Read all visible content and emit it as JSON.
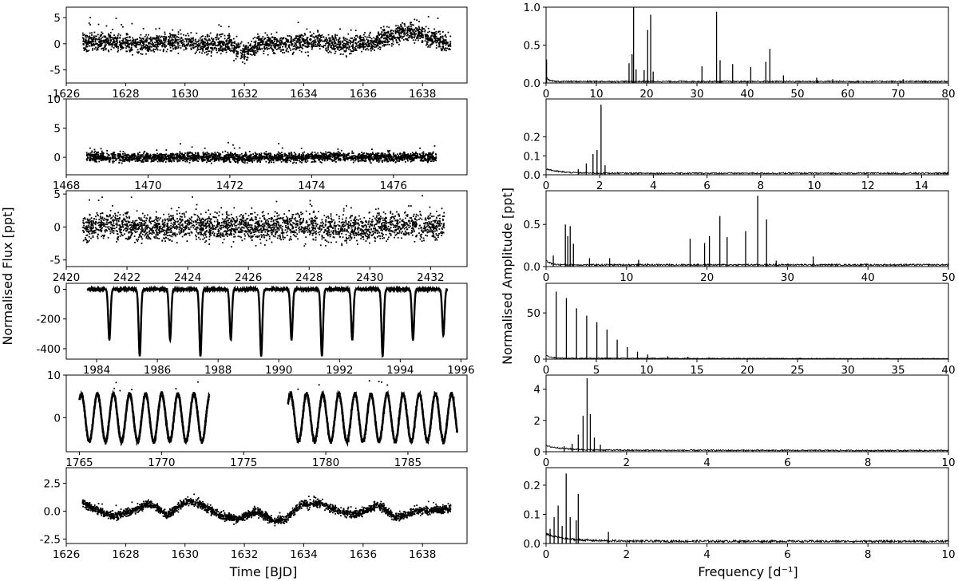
{
  "figure": {
    "left_ylabel": "Normalised Flux [ppt]",
    "left_xlabel": "Time [BJD]",
    "right_ylabel": "Normalised Amplitude [ppt]",
    "right_xlabel": "Frequency [d⁻¹]"
  },
  "chart_data": [
    {
      "type": "scatter",
      "column": "left",
      "row": 1,
      "xlim": [
        1626,
        1639.5
      ],
      "ylim": [
        -7.5,
        7
      ],
      "xticks": [
        1626,
        1628,
        1630,
        1632,
        1634,
        1636,
        1638
      ],
      "yticks": [
        -5,
        0,
        5
      ],
      "x": [
        1626.55,
        1627.5,
        1628.5,
        1629.5,
        1630.5,
        1631.5,
        1632.0,
        1632.5,
        1633.5,
        1634.5,
        1635.5,
        1636.5,
        1637.5,
        1638.5,
        1638.95
      ],
      "y": [
        0.6,
        0.3,
        -0.1,
        0.4,
        -0.2,
        0.1,
        -2.0,
        0.2,
        0.0,
        0.5,
        -0.3,
        0.6,
        2.5,
        0.8,
        -0.4
      ],
      "scatter_amplitude": 2.2
    },
    {
      "type": "scatter",
      "column": "left",
      "row": 2,
      "xlim": [
        1468,
        1477.8
      ],
      "ylim": [
        -3,
        10
      ],
      "xticks": [
        1468,
        1470,
        1472,
        1474,
        1476
      ],
      "yticks": [
        0,
        5,
        10
      ],
      "x": [
        1468.5,
        1469.5,
        1470.5,
        1471.5,
        1472.5,
        1473.5,
        1474.5,
        1475.5,
        1476.5,
        1477.05
      ],
      "y": [
        0.1,
        -0.1,
        0.0,
        0.1,
        -0.1,
        0.0,
        0.1,
        0.0,
        0.1,
        0.0
      ],
      "scatter_amplitude": 1.0
    },
    {
      "type": "scatter",
      "column": "left",
      "row": 3,
      "xlim": [
        2420,
        2433.2
      ],
      "ylim": [
        -6,
        5.5
      ],
      "xticks": [
        2420,
        2422,
        2424,
        2426,
        2428,
        2430,
        2432
      ],
      "yticks": [
        -5,
        0,
        5
      ],
      "x": [
        2420.55,
        2421.5,
        2422.5,
        2423.5,
        2424.5,
        2425.5,
        2426.5,
        2427.5,
        2428.5,
        2429.5,
        2430.5,
        2431.5,
        2432.45
      ],
      "y": [
        0.0,
        0.3,
        -0.2,
        0.1,
        0.0,
        0.2,
        -0.1,
        0.3,
        0.0,
        -0.2,
        0.1,
        0.2,
        0.0
      ],
      "scatter_amplitude": 2.6
    },
    {
      "type": "line",
      "column": "left",
      "row": 4,
      "xlim": [
        1983,
        1996.2
      ],
      "ylim": [
        -470,
        40
      ],
      "xticks": [
        1984,
        1986,
        1988,
        1990,
        1992,
        1994,
        1996
      ],
      "yticks": [
        -400,
        -200,
        0
      ],
      "baseline": 0,
      "eclipses": [
        {
          "x": 1984.42,
          "depth": -340
        },
        {
          "x": 1985.42,
          "depth": -450
        },
        {
          "x": 1986.42,
          "depth": -340
        },
        {
          "x": 1987.42,
          "depth": -450
        },
        {
          "x": 1988.42,
          "depth": -340
        },
        {
          "x": 1989.42,
          "depth": -450
        },
        {
          "x": 1990.42,
          "depth": -340
        },
        {
          "x": 1991.42,
          "depth": -450
        },
        {
          "x": 1992.42,
          "depth": -340
        },
        {
          "x": 1993.42,
          "depth": -450
        },
        {
          "x": 1994.42,
          "depth": -340
        },
        {
          "x": 1995.42,
          "depth": -310
        }
      ],
      "data_range": [
        1983.7,
        1995.55
      ]
    },
    {
      "type": "line",
      "column": "left",
      "row": 5,
      "xlim": [
        1764.2,
        1788.6
      ],
      "ylim": [
        -8,
        10
      ],
      "xticks": [
        1765,
        1770,
        1775,
        1780,
        1785
      ],
      "yticks": [
        0,
        10
      ],
      "segments": [
        [
          1765.0,
          1772.9
        ],
        [
          1777.7,
          1788.0
        ]
      ],
      "period_days": 0.98,
      "amplitude": 5.6,
      "phase": 0.7
    },
    {
      "type": "scatter",
      "column": "left",
      "row": 6,
      "xlim": [
        1626,
        1639.5
      ],
      "ylim": [
        -2.9,
        3.9
      ],
      "xticks": [
        1626,
        1628,
        1630,
        1632,
        1634,
        1636,
        1638
      ],
      "yticks": [
        -2.5,
        0.0,
        2.5
      ],
      "x": [
        1626.55,
        1627.0,
        1627.6,
        1628.2,
        1628.8,
        1629.4,
        1630.1,
        1630.6,
        1631.2,
        1631.8,
        1632.4,
        1633.0,
        1633.4,
        1633.9,
        1634.6,
        1635.2,
        1635.8,
        1636.5,
        1637.1,
        1637.8,
        1638.95
      ],
      "y": [
        0.8,
        0.1,
        -0.5,
        0.0,
        0.7,
        -0.3,
        0.9,
        0.5,
        -0.4,
        -0.7,
        0.0,
        -0.9,
        -0.7,
        0.6,
        0.7,
        0.0,
        -0.3,
        0.6,
        -0.6,
        0.0,
        0.2
      ],
      "scatter_amplitude": 0.45
    },
    {
      "type": "line",
      "column": "right",
      "row": 1,
      "xlim": [
        0,
        80
      ],
      "ylim": [
        0,
        1.0
      ],
      "xticks": [
        0,
        10,
        20,
        30,
        40,
        50,
        60,
        70,
        80
      ],
      "yticks": [
        0.0,
        0.5,
        1.0
      ],
      "noise_level": 0.03,
      "noise_decay": 0.0,
      "peaks": [
        [
          0.1,
          0.31
        ],
        [
          16.5,
          0.26
        ],
        [
          17.1,
          0.38
        ],
        [
          17.4,
          1.0
        ],
        [
          17.9,
          0.18
        ],
        [
          19.5,
          0.17
        ],
        [
          20.2,
          0.7
        ],
        [
          20.8,
          0.9
        ],
        [
          21.3,
          0.15
        ],
        [
          31.0,
          0.22
        ],
        [
          33.9,
          0.94
        ],
        [
          34.6,
          0.3
        ],
        [
          37.1,
          0.25
        ],
        [
          40.7,
          0.21
        ],
        [
          43.7,
          0.28
        ],
        [
          44.5,
          0.45
        ],
        [
          47.2,
          0.1
        ],
        [
          53.8,
          0.07
        ],
        [
          57.0,
          0.05
        ],
        [
          71.0,
          0.05
        ]
      ]
    },
    {
      "type": "line",
      "column": "right",
      "row": 2,
      "xlim": [
        0,
        15
      ],
      "ylim": [
        0,
        0.4
      ],
      "xticks": [
        0,
        2,
        4,
        6,
        8,
        10,
        12,
        14
      ],
      "yticks": [
        0.0,
        0.1,
        0.2
      ],
      "noise_level": 0.012,
      "noise_decay": 0.0,
      "peaks": [
        [
          1.2,
          0.03
        ],
        [
          1.5,
          0.06
        ],
        [
          1.75,
          0.11
        ],
        [
          1.9,
          0.13
        ],
        [
          2.05,
          0.37
        ],
        [
          2.2,
          0.05
        ]
      ]
    },
    {
      "type": "line",
      "column": "right",
      "row": 3,
      "xlim": [
        0,
        50
      ],
      "ylim": [
        0,
        0.9
      ],
      "xticks": [
        0,
        10,
        20,
        30,
        40,
        50
      ],
      "yticks": [
        0.0,
        0.5
      ],
      "noise_level": 0.03,
      "noise_decay": 0.0,
      "peaks": [
        [
          0.9,
          0.13
        ],
        [
          2.4,
          0.5
        ],
        [
          2.7,
          0.36
        ],
        [
          3.0,
          0.48
        ],
        [
          3.4,
          0.27
        ],
        [
          5.4,
          0.1
        ],
        [
          7.9,
          0.1
        ],
        [
          11.5,
          0.08
        ],
        [
          17.9,
          0.33
        ],
        [
          19.7,
          0.28
        ],
        [
          20.3,
          0.36
        ],
        [
          21.6,
          0.6
        ],
        [
          22.5,
          0.35
        ],
        [
          24.8,
          0.42
        ],
        [
          26.3,
          0.84
        ],
        [
          27.4,
          0.56
        ],
        [
          28.6,
          0.07
        ],
        [
          33.2,
          0.12
        ]
      ]
    },
    {
      "type": "line",
      "column": "right",
      "row": 4,
      "xlim": [
        0,
        40
      ],
      "ylim": [
        0,
        82
      ],
      "xticks": [
        0,
        5,
        10,
        15,
        20,
        25,
        30,
        35,
        40
      ],
      "yticks": [
        0,
        50
      ],
      "noise_level": 1.5,
      "noise_decay": 0.15,
      "peaks": [
        [
          1.01,
          73
        ],
        [
          2.02,
          66
        ],
        [
          3.03,
          55
        ],
        [
          4.04,
          47
        ],
        [
          5.05,
          40
        ],
        [
          6.06,
          32
        ],
        [
          7.07,
          21
        ],
        [
          8.08,
          13
        ],
        [
          9.09,
          8
        ],
        [
          10.1,
          5
        ],
        [
          12.1,
          3
        ],
        [
          14.1,
          2.5
        ],
        [
          16.2,
          2
        ],
        [
          18.2,
          1.5
        ]
      ]
    },
    {
      "type": "line",
      "column": "right",
      "row": 5,
      "xlim": [
        0,
        10
      ],
      "ylim": [
        0,
        4.9
      ],
      "xticks": [
        0,
        2,
        4,
        6,
        8,
        10
      ],
      "yticks": [
        0,
        2,
        4
      ],
      "noise_level": 0.14,
      "noise_decay": 0.2,
      "peaks": [
        [
          0.45,
          0.35
        ],
        [
          0.65,
          0.5
        ],
        [
          0.8,
          1.1
        ],
        [
          0.92,
          2.3
        ],
        [
          1.02,
          4.7
        ],
        [
          1.1,
          2.4
        ],
        [
          1.2,
          0.9
        ],
        [
          1.35,
          0.45
        ]
      ]
    },
    {
      "type": "line",
      "column": "right",
      "row": 6,
      "xlim": [
        0,
        10
      ],
      "ylim": [
        0,
        0.26
      ],
      "xticks": [
        0,
        2,
        4,
        6,
        8,
        10
      ],
      "yticks": [
        0.0,
        0.1,
        0.2
      ],
      "noise_level": 0.012,
      "noise_decay": 0.1,
      "peaks": [
        [
          0.1,
          0.05
        ],
        [
          0.2,
          0.09
        ],
        [
          0.3,
          0.13
        ],
        [
          0.4,
          0.06
        ],
        [
          0.5,
          0.24
        ],
        [
          0.6,
          0.09
        ],
        [
          0.75,
          0.08
        ],
        [
          0.8,
          0.17
        ],
        [
          1.55,
          0.04
        ]
      ]
    }
  ]
}
